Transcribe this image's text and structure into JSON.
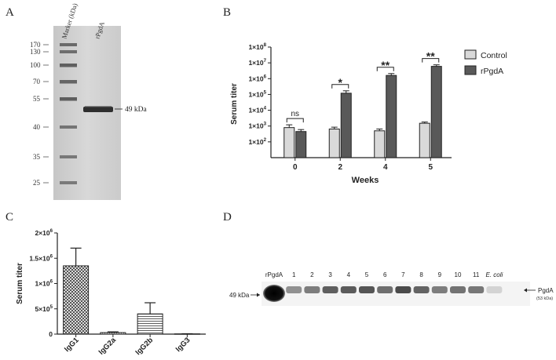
{
  "panels": {
    "a": {
      "letter": "A",
      "lane_labels": [
        "Marker (kDa)",
        "rPgdA"
      ],
      "marker_kda": [
        "170",
        "130",
        "100",
        "70",
        "55",
        "40",
        "35",
        "25"
      ],
      "band_label": "49 kDa"
    },
    "b": {
      "letter": "B",
      "ylabel": "Serum titer",
      "xlabel": "Weeks",
      "y_ticks": [
        {
          "base": "1×10",
          "exp": "2"
        },
        {
          "base": "1×10",
          "exp": "3"
        },
        {
          "base": "1×10",
          "exp": "4"
        },
        {
          "base": "1×10",
          "exp": "5"
        },
        {
          "base": "1×10",
          "exp": "6"
        },
        {
          "base": "1×10",
          "exp": "7"
        },
        {
          "base": "1×10",
          "exp": "8"
        }
      ],
      "categories": [
        "0",
        "2",
        "4",
        "5"
      ],
      "legend": [
        "Control",
        "rPgdA"
      ],
      "significance": [
        "ns",
        "*",
        "**",
        "**"
      ]
    },
    "c": {
      "letter": "C",
      "ylabel": "Serum titer",
      "y_ticks": [
        {
          "base": "0",
          "exp": ""
        },
        {
          "base": "5×10",
          "exp": "5"
        },
        {
          "base": "1×10",
          "exp": "6"
        },
        {
          "base": "1.5×10",
          "exp": "6"
        },
        {
          "base": "2×10",
          "exp": "6"
        }
      ],
      "categories": [
        "IgG1",
        "IgG2a",
        "IgG2b",
        "IgG3"
      ]
    },
    "d": {
      "letter": "D",
      "lane_labels": [
        "rPgdA",
        "1",
        "2",
        "3",
        "4",
        "5",
        "6",
        "7",
        "8",
        "9",
        "10",
        "11",
        "E. coli"
      ],
      "left_marker": "49 kDa",
      "right_label": "PgdA",
      "right_sublabel": "(53 kDa)"
    }
  },
  "chart_data": [
    {
      "type": "bar",
      "panel": "B",
      "title": "",
      "xlabel": "Weeks",
      "ylabel": "Serum titer",
      "yscale": "log",
      "ylim": [
        10,
        100000000
      ],
      "categories": [
        "0",
        "2",
        "4",
        "5"
      ],
      "series": [
        {
          "name": "Control",
          "values": [
            800,
            650,
            500,
            1500
          ],
          "errors": [
            400,
            200,
            150,
            300
          ],
          "color": "#d9d9d9"
        },
        {
          "name": "rPgdA",
          "values": [
            450,
            120000,
            1600000,
            6000000
          ],
          "errors": [
            150,
            50000,
            500000,
            1500000
          ],
          "color": "#595959"
        }
      ],
      "significance": [
        "ns",
        "*",
        "**",
        "**"
      ],
      "legend": [
        "Control",
        "rPgdA"
      ]
    },
    {
      "type": "bar",
      "panel": "C",
      "title": "",
      "xlabel": "",
      "ylabel": "Serum titer",
      "ylim": [
        0,
        2000000
      ],
      "categories": [
        "IgG1",
        "IgG2a",
        "IgG2b",
        "IgG3"
      ],
      "values": [
        1350000,
        30000,
        400000,
        5000
      ],
      "errors": [
        350000,
        15000,
        220000,
        3000
      ],
      "patterns": [
        "crosshatch",
        "dots",
        "horizontal-lines",
        "none"
      ]
    }
  ]
}
